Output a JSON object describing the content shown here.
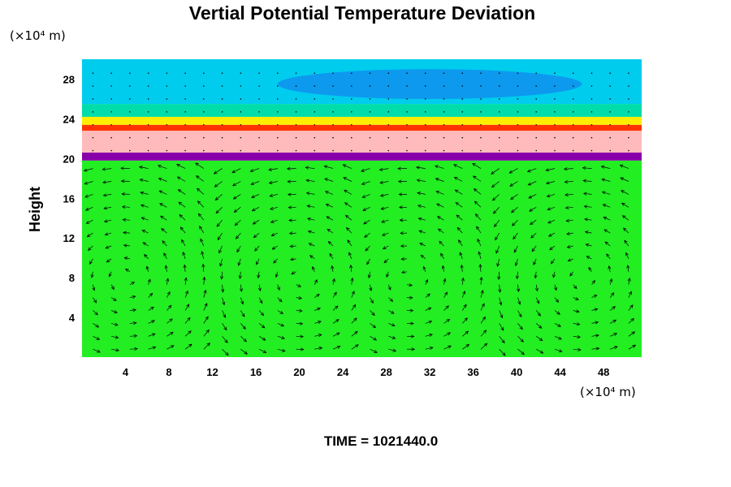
{
  "chart_data": {
    "type": "heatmap",
    "title": "Vertial Potential Temperature Deviation",
    "ylabel": "Height",
    "xlabel": "",
    "x_unit": "(×10⁴ m)",
    "y_unit": "(×10⁴ m)",
    "xlim": [
      0,
      51.5
    ],
    "ylim": [
      0,
      30
    ],
    "x_ticks": [
      4,
      8,
      12,
      16,
      20,
      24,
      28,
      32,
      36,
      40,
      44,
      48
    ],
    "y_ticks": [
      4,
      8,
      12,
      16,
      20,
      24,
      28
    ],
    "grid": false,
    "field_layers": [
      {
        "y_range": [
          0,
          19.8
        ],
        "color": "#22ee22"
      },
      {
        "y_range": [
          19.8,
          20.6
        ],
        "color": "#8800aa"
      },
      {
        "y_range": [
          20.6,
          22.8
        ],
        "color": "#ffbbbb"
      },
      {
        "y_range": [
          22.8,
          23.4
        ],
        "color": "#ff3300"
      },
      {
        "y_range": [
          23.4,
          24.2
        ],
        "color": "#ffee00"
      },
      {
        "y_range": [
          24.2,
          25.5
        ],
        "color": "#00ddaa"
      },
      {
        "y_range": [
          25.5,
          30
        ],
        "color": "#00ccee"
      }
    ],
    "upper_cool_region": {
      "x_range": [
        18,
        46
      ],
      "y_range": [
        26,
        29
      ],
      "color": "#1188ee"
    },
    "vector_field": "wind arrows (u, w) overlaid below 20 × 10⁴ m; circulation cells centered near x = 4, 20, 30, 46"
  },
  "footer": {
    "time_text": "TIME = 1021440.0"
  }
}
